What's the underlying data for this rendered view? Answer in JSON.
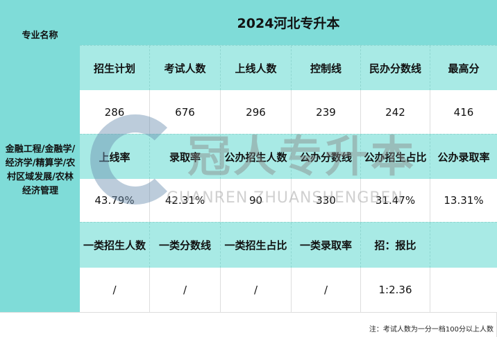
{
  "title": "2024河北专升本",
  "left_header": "专业名称",
  "major": "金融工程/金融学/经济学/精算学/农村区域发展/农林经济管理",
  "rows": [
    {
      "type": "header",
      "cells": [
        "招生计划",
        "考试人数",
        "上线人数",
        "控制线",
        "民办分数线",
        "最高分"
      ]
    },
    {
      "type": "value",
      "cells": [
        "286",
        "676",
        "296",
        "239",
        "242",
        "416"
      ]
    },
    {
      "type": "header",
      "cells": [
        "上线率",
        "录取率",
        "公办招生人数",
        "公办分数线",
        "公办招生占比",
        "公办录取率"
      ]
    },
    {
      "type": "value",
      "cells": [
        "43.79%",
        "42.31%",
        "90",
        "330",
        "31.47%",
        "13.31%"
      ]
    },
    {
      "type": "header",
      "cells": [
        "一类招生人数",
        "一类分数线",
        "一类招生占比",
        "一类录取率",
        "招：报比",
        ""
      ]
    },
    {
      "type": "value",
      "cells": [
        "/",
        "/",
        "/",
        "/",
        "1:2.36",
        ""
      ]
    }
  ],
  "note": "注：考试人数为一分一档100分以上人数",
  "watermark": {
    "cn": "冠人专升本",
    "en": "GUANREN ZHUANSHENGBEN"
  },
  "colors": {
    "dark_teal": "#7fdcd8",
    "light_teal": "#a8eae5"
  }
}
